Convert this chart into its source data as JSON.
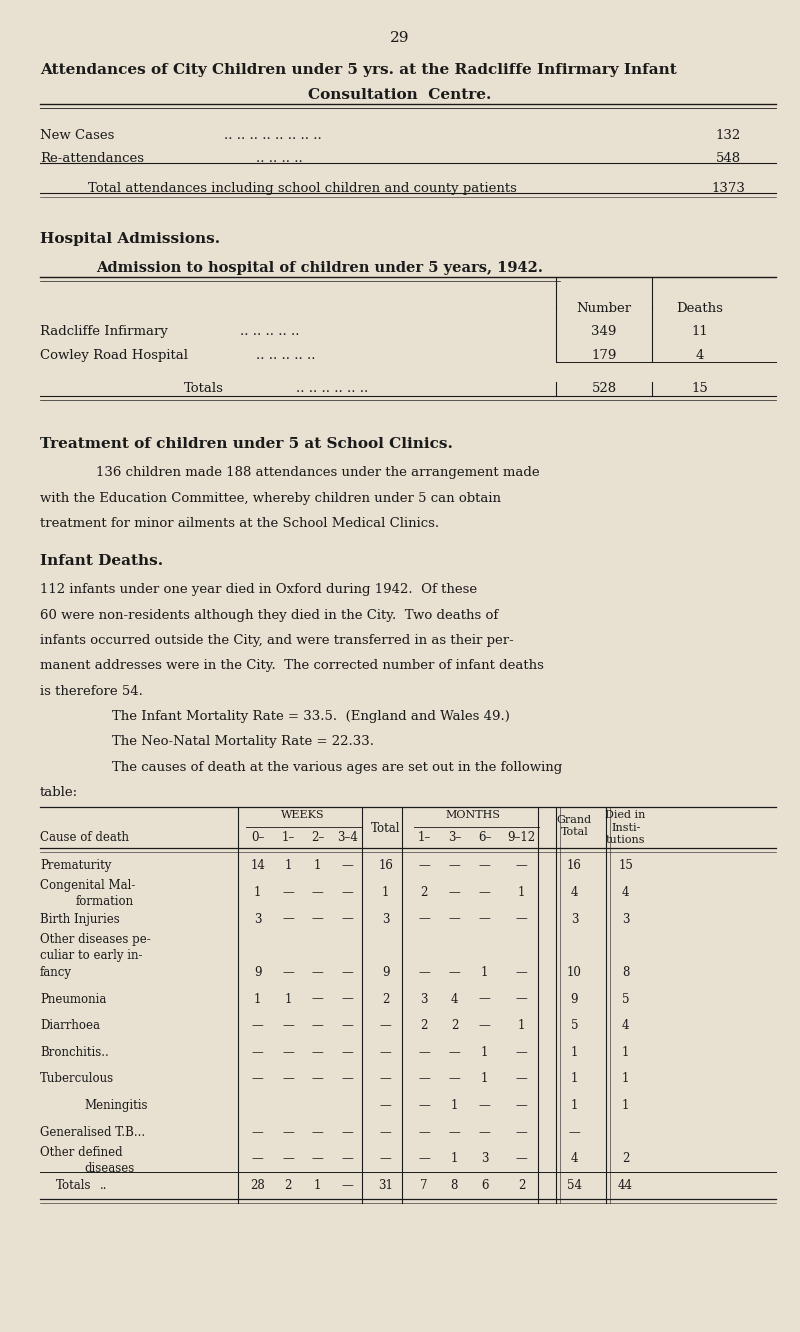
{
  "bg_color": "#e8e0d0",
  "text_color": "#1a1a1a",
  "page_number": "29",
  "title_line1": "Attendances of City Children under 5 yrs. at the Radcliffe Infirmary Infant",
  "title_line2": "Consultation  Centre.",
  "new_cases_label": "New Cases",
  "new_cases_dots": ".. .. .. .. .. .. .. ..",
  "new_cases_value": "132",
  "reattend_label": "Re-attendances",
  "reattend_dots": ".. .. .. ..",
  "reattend_value": "548",
  "total_attendance_label": "Total attendances including school children and county patients",
  "total_attendance_value": "1373",
  "hosp_section_title": "Hospital Admissions.",
  "hosp_subtitle": "Admission to hospital of children under 5 years, 1942.",
  "hosp_col1": "Number",
  "hosp_col2": "Deaths",
  "hosp_row1_label": "Radcliffe Infirmary",
  "hosp_row1_dots": ".. .. .. .. ..",
  "hosp_row1_num": "349",
  "hosp_row1_deaths": "11",
  "hosp_row2_label": "Cowley Road Hospital",
  "hosp_row2_dots": ".. .. .. .. ..",
  "hosp_row2_num": "179",
  "hosp_row2_deaths": "4",
  "hosp_total_label": "Totals",
  "hosp_total_dots": ".. .. .. .. .. ..",
  "hosp_total_num": "528",
  "hosp_total_deaths": "15",
  "school_title": "Treatment of children under 5 at School Clinics.",
  "school_text1": "136 children made 188 attendances under the arrangement made",
  "school_text2": "with the Education Committee, whereby children under 5 can obtain",
  "school_text3": "treatment for minor ailments at the School Medical Clinics.",
  "infant_title": "Infant Deaths.",
  "infant_para1a": "112 infants under one year died in Oxford during 1942.  Of these",
  "infant_para1b": "60 were non-residents although they died in the City.  Two deaths of",
  "infant_para1c": "infants occurred outside the City, and were transferred in as their per-",
  "infant_para1d": "manent addresses were in the City.  The corrected number of infant deaths",
  "infant_para1e": "is therefore 54.",
  "infant_rate1": "The Infant Mortality Rate = 33.5.  (England and Wales 49.)",
  "infant_rate2": "The Neo-Natal Mortality Rate = 22.33.",
  "infant_rate3": "The causes of death at the various ages are set out in the following",
  "infant_rate4": "table:",
  "table_rows": [
    {
      "cause": "Prematurity",
      "cause2": ".. ",
      "w0": "14",
      "w1": "1",
      "w2": "1",
      "w3": "—",
      "tot": "16",
      "m1": "—",
      "m3": "—",
      "m6": "—",
      "m9": "—",
      "grand": "16",
      "died": "15"
    },
    {
      "cause": "Congenital Mal-",
      "cause2": "        formation",
      "w0": "1",
      "w1": "—",
      "w2": "—",
      "w3": "—",
      "tot": "1",
      "m1": "2",
      "m3": "—",
      "m6": "—",
      "m9": "1",
      "grand": "4",
      "died": "4"
    },
    {
      "cause": "Birth Injuries",
      "cause2": ".. ",
      "w0": "3",
      "w1": "—",
      "w2": "—",
      "w3": "—",
      "tot": "3",
      "m1": "—",
      "m3": "—",
      "m6": "—",
      "m9": "—",
      "grand": "3",
      "died": "3"
    },
    {
      "cause": "Other diseases pe-",
      "cause2": "culiar to early in-",
      "w0": "",
      "w1": "",
      "w2": "",
      "w3": "",
      "tot": "",
      "m1": "",
      "m3": "",
      "m6": "",
      "m9": "",
      "grand": "",
      "died": ""
    },
    {
      "cause": "fancy",
      "cause2": ".. ",
      "w0": "9",
      "w1": "—",
      "w2": "—",
      "w3": "—",
      "tot": "9",
      "m1": "—",
      "m3": "—",
      "m6": "1",
      "m9": "—",
      "grand": "10",
      "died": "8"
    },
    {
      "cause": "Pneumonia",
      "cause2": ".. ",
      "w0": "1",
      "w1": "1",
      "w2": "—",
      "w3": "—",
      "tot": "2",
      "m1": "3",
      "m3": "4",
      "m6": "—",
      "m9": "—",
      "grand": "9",
      "died": "5"
    },
    {
      "cause": "Diarrhoea",
      "cause2": ".. ",
      "w0": "—",
      "w1": "—",
      "w2": "—",
      "w3": "—",
      "tot": "—",
      "m1": "2",
      "m3": "2",
      "m6": "—",
      "m9": "1",
      "grand": "5",
      "died": "4"
    },
    {
      "cause": "Bronchitis..",
      "cause2": ".. ",
      "w0": "—",
      "w1": "—",
      "w2": "—",
      "w3": "—",
      "tot": "—",
      "m1": "—",
      "m3": "—",
      "m6": "1",
      "m9": "—",
      "grand": "1",
      "died": "1"
    },
    {
      "cause": "Tuberculous",
      "cause2": ".. ",
      "w0": "—",
      "w1": "—",
      "w2": "—",
      "w3": "—",
      "tot": "—",
      "m1": "—",
      "m3": "—",
      "m6": "1",
      "m9": "—",
      "grand": "1",
      "died": "1"
    },
    {
      "cause": "    Meningitis",
      "cause2": "",
      "w0": "",
      "w1": "",
      "w2": "",
      "w3": "",
      "tot": "—",
      "m1": "—",
      "m3": "1",
      "m6": "—",
      "m9": "—",
      "grand": "1",
      "died": "1"
    },
    {
      "cause": "Generalised T.B...",
      "cause2": "",
      "w0": "—",
      "w1": "—",
      "w2": "—",
      "w3": "—",
      "tot": "—",
      "m1": "—",
      "m3": "—",
      "m6": "—",
      "m9": "—",
      "grand": "—",
      "died": ""
    },
    {
      "cause": "Other defined",
      "cause2": "        diseases",
      "w0": "—",
      "w1": "—",
      "w2": "—",
      "w3": "—",
      "tot": "—",
      "m1": "—",
      "m3": "1",
      "m6": "3",
      "m9": "—",
      "grand": "4",
      "died": "2"
    },
    {
      "cause": "Totals",
      "cause2": ".. ",
      "w0": "28",
      "w1": "2",
      "w2": "1",
      "w3": "—",
      "tot": "31",
      "m1": "7",
      "m3": "8",
      "m6": "6",
      "m9": "2",
      "grand": "54",
      "died": "44"
    }
  ]
}
